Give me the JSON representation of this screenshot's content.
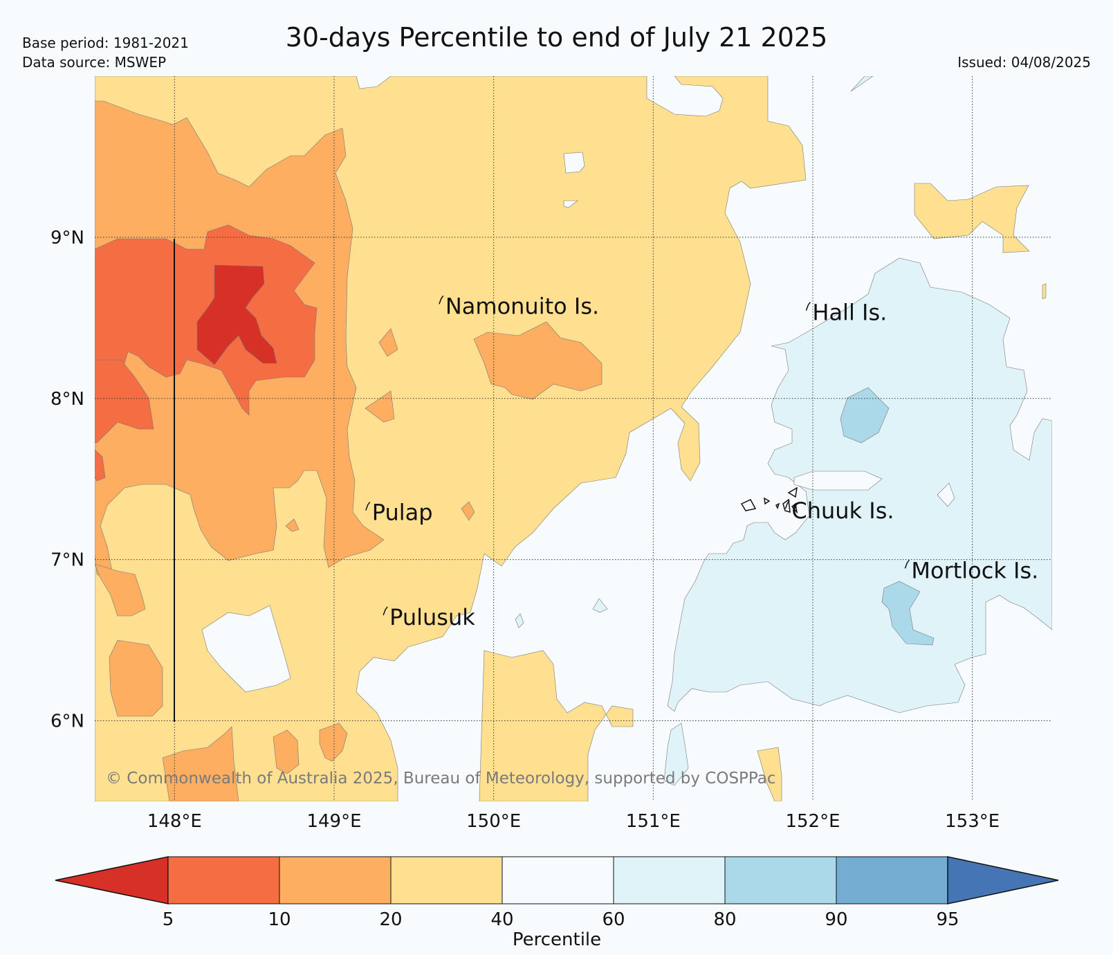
{
  "header": {
    "title": "30-days Percentile to end of July 21 2025",
    "base_period": "Base period: 1981-2021",
    "data_source": "Data source: MSWEP",
    "issued": "Issued: 04/08/2025"
  },
  "map": {
    "lon_range": [
      147.5,
      153.5
    ],
    "lat_range": [
      5.5,
      10.0
    ],
    "lon_ticks": [
      {
        "value": 148,
        "label": "148°E"
      },
      {
        "value": 149,
        "label": "149°E"
      },
      {
        "value": 150,
        "label": "150°E"
      },
      {
        "value": 151,
        "label": "151°E"
      },
      {
        "value": 152,
        "label": "152°E"
      },
      {
        "value": 153,
        "label": "153°E"
      }
    ],
    "lat_ticks": [
      {
        "value": 9,
        "label": "9°N"
      },
      {
        "value": 8,
        "label": "8°N"
      },
      {
        "value": 7,
        "label": "7°N"
      },
      {
        "value": 6,
        "label": "6°N"
      }
    ],
    "grid": "dotted",
    "places": [
      {
        "name": "Namonuito Is.",
        "lon": 149.68,
        "lat": 8.62
      },
      {
        "name": "Hall Is.",
        "lon": 151.98,
        "lat": 8.58
      },
      {
        "name": "Pulap",
        "lon": 149.22,
        "lat": 7.34
      },
      {
        "name": "Chuuk Is.",
        "lon": 151.85,
        "lat": 7.35
      },
      {
        "name": "Mortlock Is.",
        "lon": 152.6,
        "lat": 6.98
      },
      {
        "name": "Pulusuk",
        "lon": 149.33,
        "lat": 6.69
      }
    ],
    "copyright": "© Commonwealth of Australia 2025, Bureau of Meteorology, supported by COSPPac"
  },
  "colorbar": {
    "title": "Percentile",
    "boundaries": [
      "5",
      "10",
      "20",
      "40",
      "60",
      "80",
      "90",
      "95"
    ],
    "colors": {
      "below_5": "#d73027",
      "p5_10": "#f46d43",
      "p10_20": "#fdae61",
      "p20_40": "#fee090",
      "p40_60": "#f7fbfd",
      "p60_80": "#e0f3f8",
      "p80_90": "#abd9e9",
      "p90_95": "#74add1",
      "above_95": "#4575b4"
    }
  }
}
